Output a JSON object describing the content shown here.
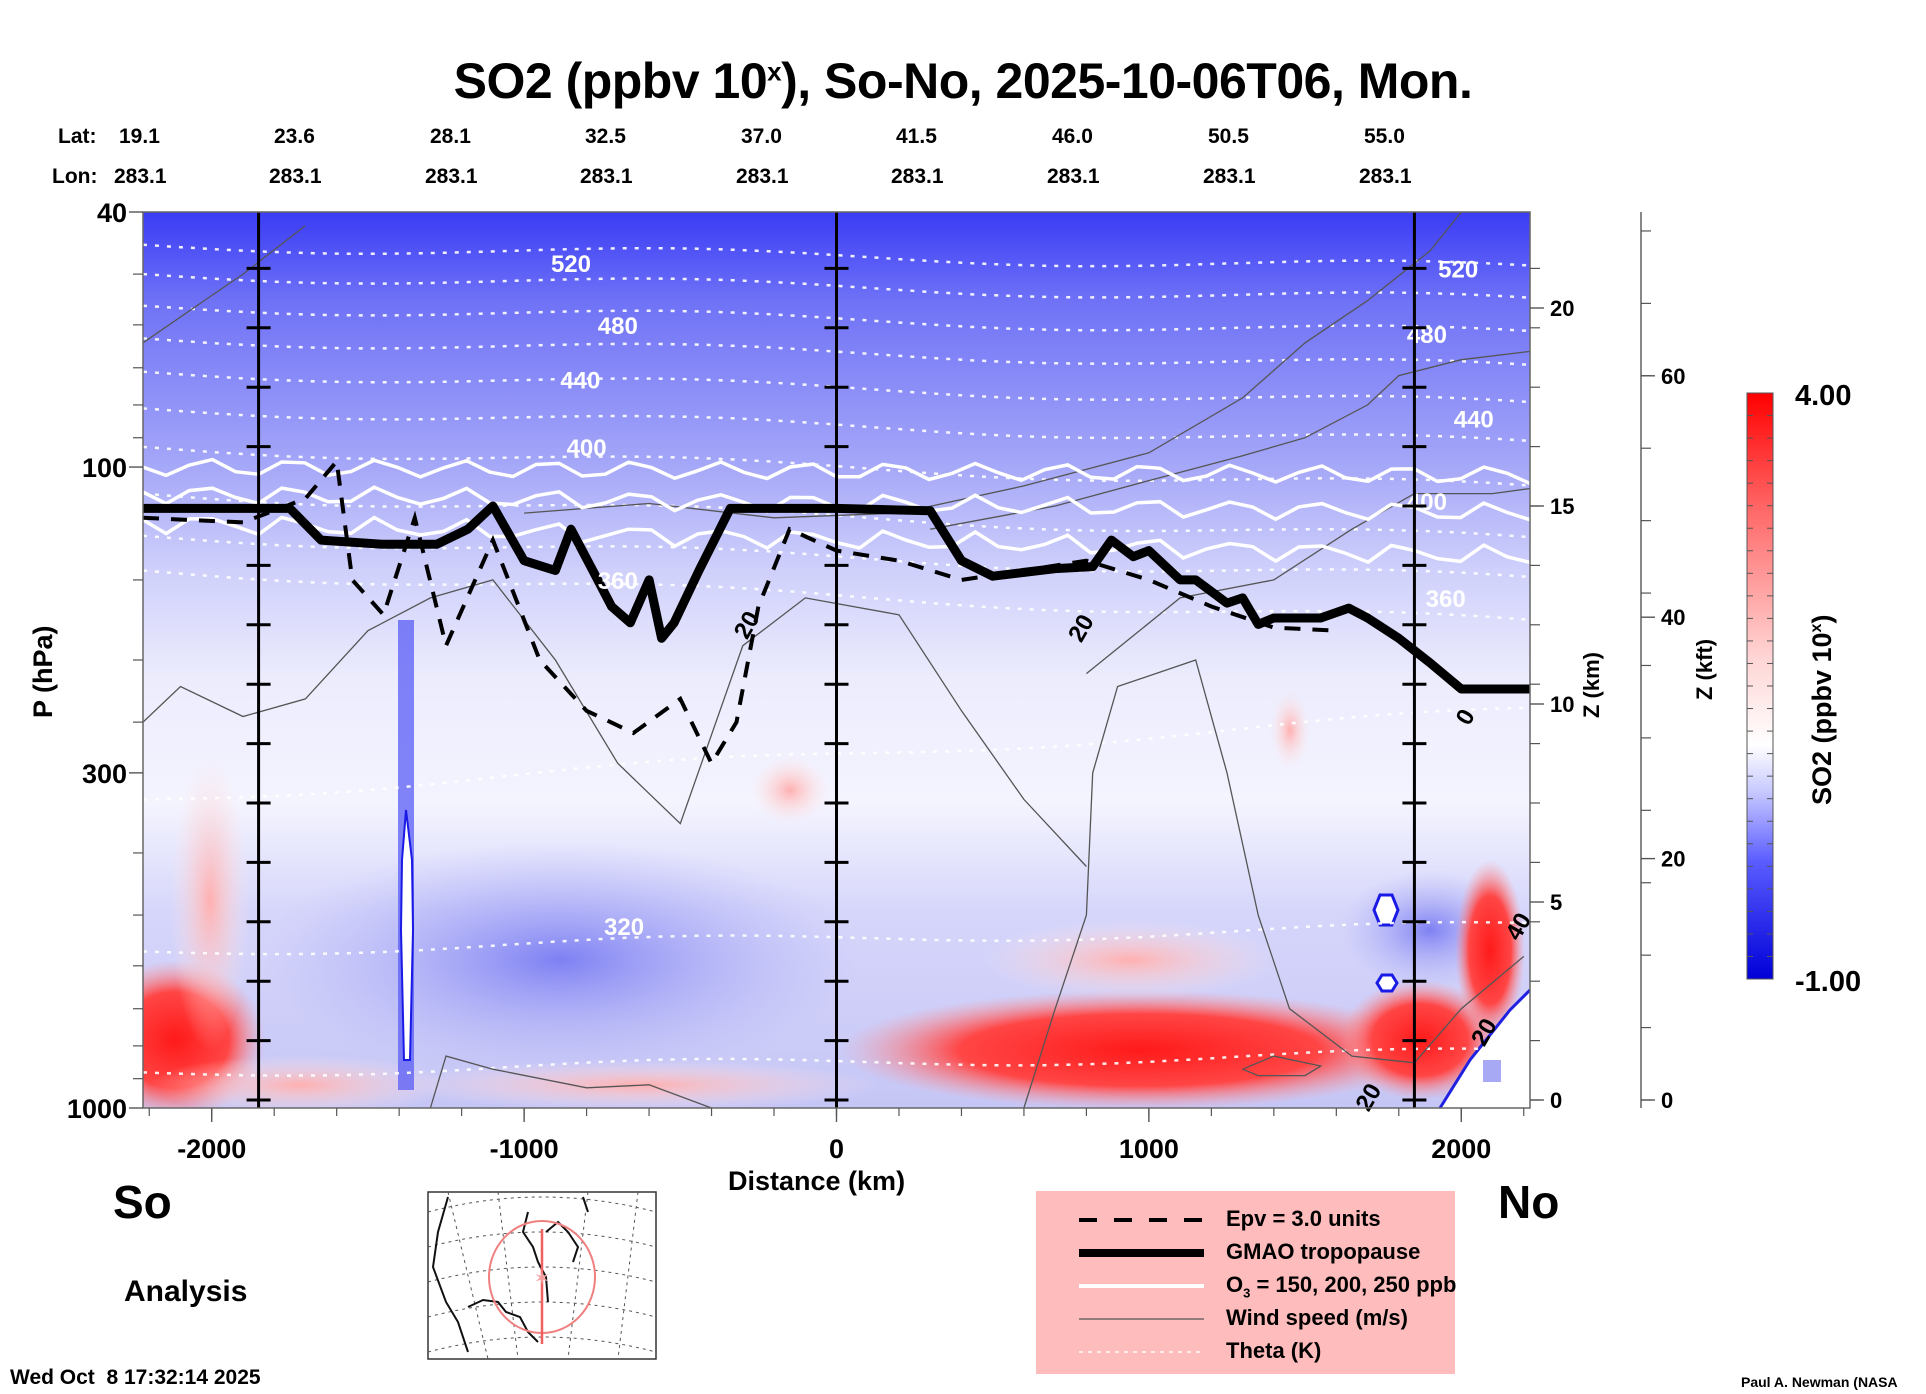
{
  "figure": {
    "title_main": "SO2 (ppbv 10",
    "title_sup": "x",
    "title_rest": "), So-No, 2025-10-06T06, Mon.",
    "lat_label": "Lat:",
    "lon_label": "Lon:",
    "direction_left": "So",
    "direction_right": "No",
    "product_label": "Analysis",
    "timestamp": "Wed Oct  8 17:32:14 2025",
    "credit": "Paul A. Newman (NASA"
  },
  "legend": {
    "items": [
      {
        "label": "Epv = 3.0 units",
        "style": "dashed-thick"
      },
      {
        "label": "GMAO tropopause",
        "style": "solid-heavy"
      },
      {
        "label_pre": "O",
        "label_sub": "3",
        "label_post": " = 150, 200, 250 ppb",
        "style": "solid-white"
      },
      {
        "label": "Wind speed (m/s)",
        "style": "solid-thin"
      },
      {
        "label": "Theta (K)",
        "style": "dotted-white"
      }
    ],
    "background": "#ffbcbc"
  },
  "chart_data": {
    "type": "heatmap",
    "title": "SO2 (ppbv 10^x), So-No, 2025-10-06T06, Mon.",
    "xlabel": "Distance (km)",
    "ylabel": "P (hPa)",
    "y2label": "Z (km)",
    "y3label": "Z (kft)",
    "colorbar_label": "SO2 (ppbv 10^x)",
    "xlim": [
      -2220,
      2220
    ],
    "ylim": [
      1000,
      40
    ],
    "yscale": "log",
    "x_ticks": [
      -2000,
      -1000,
      0,
      1000,
      2000
    ],
    "x_tick_labels": [
      "-2000",
      "-1000",
      "0",
      "1000",
      "2000"
    ],
    "y_ticks": [
      40,
      100,
      300,
      1000
    ],
    "y_tick_labels": [
      "40",
      "100",
      "300",
      "1000"
    ],
    "z_km_ticks": [
      0,
      5,
      10,
      15,
      20
    ],
    "z_kft_ticks": [
      0,
      20,
      40,
      60
    ],
    "colorbar": {
      "min": -1.0,
      "max": 4.0,
      "min_label": "-1.00",
      "max_label": "4.00",
      "low_color": "#0000e0",
      "mid_color": "#ffffff",
      "high_color": "#ff0000"
    },
    "section_markers_km": [
      -1850,
      0,
      1850
    ],
    "lat_ticks": [
      "19.1",
      "23.6",
      "28.1",
      "32.5",
      "37.0",
      "41.5",
      "46.0",
      "50.5",
      "55.0"
    ],
    "lon_ticks": [
      "283.1",
      "283.1",
      "283.1",
      "283.1",
      "283.1",
      "283.1",
      "283.1",
      "283.1",
      "283.1"
    ],
    "theta_labels": [
      {
        "value": "520",
        "x": -850,
        "p": 48
      },
      {
        "value": "480",
        "x": -700,
        "p": 60
      },
      {
        "value": "440",
        "x": -820,
        "p": 73
      },
      {
        "value": "400",
        "x": -800,
        "p": 93
      },
      {
        "value": "360",
        "x": -700,
        "p": 150
      },
      {
        "value": "320",
        "x": -680,
        "p": 520
      },
      {
        "value": "520",
        "x": 1990,
        "p": 49
      },
      {
        "value": "480",
        "x": 1890,
        "p": 62
      },
      {
        "value": "440",
        "x": 2040,
        "p": 84
      },
      {
        "value": "400",
        "x": 1890,
        "p": 113
      },
      {
        "value": "360",
        "x": 1950,
        "p": 160
      }
    ],
    "wind_labels": [
      {
        "value": "20",
        "x": -290,
        "p": 176
      },
      {
        "value": "20",
        "x": 780,
        "p": 178
      },
      {
        "value": "20",
        "x": 1700,
        "p": 960
      },
      {
        "value": "20",
        "x": 2070,
        "p": 760
      },
      {
        "value": "40",
        "x": 2180,
        "p": 520
      },
      {
        "value": "0",
        "x": 2010,
        "p": 245
      }
    ],
    "tropopause": {
      "x": [
        -2220,
        -1750,
        -1650,
        -1450,
        -1280,
        -1180,
        -1100,
        -1000,
        -900,
        -850,
        -780,
        -720,
        -660,
        -600,
        -560,
        -520,
        -440,
        -340,
        -280,
        0,
        300,
        400,
        500,
        600,
        700,
        820,
        880,
        950,
        1000,
        1100,
        1150,
        1250,
        1300,
        1350,
        1400,
        1550,
        1640,
        1700,
        1800,
        1900,
        2000,
        2220
      ],
      "p": [
        116,
        116,
        130,
        132,
        132,
        125,
        115,
        140,
        145,
        125,
        145,
        165,
        175,
        150,
        185,
        175,
        145,
        116,
        116,
        116,
        117,
        140,
        148,
        146,
        144,
        143,
        130,
        138,
        135,
        150,
        150,
        163,
        160,
        176,
        172,
        172,
        166,
        172,
        185,
        202,
        222,
        222
      ]
    },
    "ozone_contours_ppb": [
      150,
      200,
      250
    ],
    "epv_contour_units": 3.0,
    "legend_position": "bottom-center"
  }
}
